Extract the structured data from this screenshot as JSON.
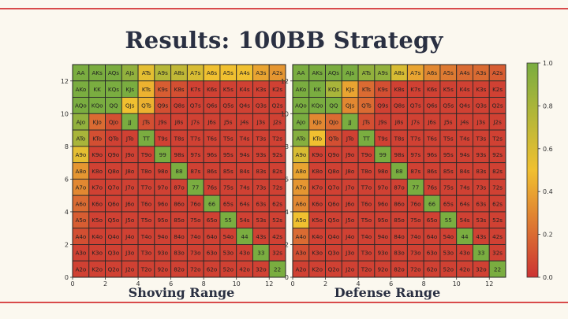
{
  "title": "Results: 100BB Strategy",
  "captions": {
    "left": "Shoving Range",
    "right": "Defense Range"
  },
  "colors": {
    "low": "#cc3333",
    "mid": "#f0c030",
    "high": "#7aad40"
  },
  "chart_data": [
    {
      "type": "heatmap",
      "title": "",
      "ranks": [
        "A",
        "K",
        "Q",
        "J",
        "T",
        "9",
        "8",
        "7",
        "6",
        "5",
        "4",
        "3",
        "2"
      ],
      "x_ticks": [
        0,
        2,
        4,
        6,
        8,
        10,
        12
      ],
      "y_ticks": [
        0,
        2,
        4,
        6,
        8,
        10,
        12
      ],
      "xlim": [
        0,
        13
      ],
      "ylim": [
        0,
        13
      ],
      "cells": [
        [
          1,
          1,
          1,
          0.9,
          0.55,
          0.75,
          0.7,
          0.6,
          0.5,
          0.5,
          0.5,
          0.4,
          0.35
        ],
        [
          1,
          1,
          1,
          1,
          0.45,
          0.15,
          0.1,
          0.05,
          0.05,
          0.05,
          0.05,
          0.05,
          0.05
        ],
        [
          1,
          1,
          1,
          0.5,
          0.45,
          0.1,
          0.05,
          0.05,
          0.05,
          0.05,
          0.05,
          0.05,
          0.05
        ],
        [
          0.9,
          0.2,
          0.1,
          1,
          0.1,
          0.05,
          0.05,
          0.05,
          0.05,
          0.05,
          0.05,
          0.05,
          0.05
        ],
        [
          0.8,
          0.1,
          0.05,
          0.05,
          1,
          0.05,
          0.05,
          0.05,
          0.05,
          0.05,
          0.05,
          0.05,
          0.05
        ],
        [
          0.55,
          0.05,
          0.05,
          0.05,
          0.05,
          1,
          0.05,
          0.05,
          0.05,
          0.05,
          0.05,
          0.05,
          0.05
        ],
        [
          0.35,
          0.05,
          0.05,
          0.05,
          0.05,
          0.05,
          1,
          0.05,
          0.05,
          0.05,
          0.05,
          0.05,
          0.05
        ],
        [
          0.3,
          0.05,
          0.05,
          0.05,
          0.05,
          0.05,
          0.05,
          1,
          0.05,
          0.05,
          0.05,
          0.05,
          0.05
        ],
        [
          0.2,
          0.05,
          0.05,
          0.05,
          0.05,
          0.05,
          0.05,
          0.05,
          1,
          0.05,
          0.05,
          0.05,
          0.05
        ],
        [
          0.15,
          0.05,
          0.05,
          0.05,
          0.05,
          0.05,
          0.05,
          0.05,
          0.05,
          1,
          0.05,
          0.05,
          0.05
        ],
        [
          0.1,
          0.05,
          0.05,
          0.05,
          0.05,
          0.05,
          0.05,
          0.05,
          0.05,
          0.05,
          1,
          0.05,
          0.05
        ],
        [
          0.05,
          0.05,
          0.05,
          0.05,
          0.05,
          0.05,
          0.05,
          0.05,
          0.05,
          0.05,
          0.05,
          1,
          0.05
        ],
        [
          0.05,
          0.05,
          0.05,
          0.05,
          0.05,
          0.05,
          0.05,
          0.05,
          0.05,
          0.05,
          0.05,
          0.05,
          1
        ]
      ]
    },
    {
      "type": "heatmap",
      "title": "",
      "ranks": [
        "A",
        "K",
        "Q",
        "J",
        "T",
        "9",
        "8",
        "7",
        "6",
        "5",
        "4",
        "3",
        "2"
      ],
      "x_ticks": [
        0,
        2,
        4,
        6,
        8,
        10,
        12
      ],
      "y_ticks": [
        0,
        2,
        4,
        6,
        8,
        10,
        12
      ],
      "xlim": [
        0,
        13
      ],
      "ylim": [
        0,
        13
      ],
      "cells": [
        [
          1,
          1,
          1,
          1,
          0.9,
          0.9,
          0.6,
          0.4,
          0.3,
          0.25,
          0.2,
          0.2,
          0.15
        ],
        [
          1,
          1,
          0.8,
          0.4,
          0.2,
          0.1,
          0.05,
          0.05,
          0.05,
          0.05,
          0.05,
          0.05,
          0.05
        ],
        [
          1,
          1,
          1,
          0.3,
          0.2,
          0.05,
          0.05,
          0.05,
          0.05,
          0.05,
          0.05,
          0.05,
          0.05
        ],
        [
          1,
          0.3,
          0.2,
          1,
          0.1,
          0.05,
          0.05,
          0.05,
          0.05,
          0.05,
          0.05,
          0.05,
          0.05
        ],
        [
          0.95,
          0.5,
          0.1,
          0.05,
          1,
          0.05,
          0.05,
          0.05,
          0.05,
          0.05,
          0.05,
          0.05,
          0.05
        ],
        [
          0.6,
          0.05,
          0.05,
          0.05,
          0.05,
          1,
          0.05,
          0.05,
          0.05,
          0.05,
          0.05,
          0.05,
          0.05
        ],
        [
          0.4,
          0.05,
          0.05,
          0.05,
          0.05,
          0.05,
          1,
          0.05,
          0.05,
          0.05,
          0.05,
          0.05,
          0.05
        ],
        [
          0.35,
          0.05,
          0.05,
          0.05,
          0.05,
          0.05,
          0.05,
          1,
          0.05,
          0.05,
          0.05,
          0.05,
          0.05
        ],
        [
          0.3,
          0.05,
          0.05,
          0.05,
          0.05,
          0.05,
          0.05,
          0.05,
          1,
          0.05,
          0.05,
          0.05,
          0.05
        ],
        [
          0.5,
          0.05,
          0.05,
          0.05,
          0.05,
          0.05,
          0.05,
          0.05,
          0.05,
          1,
          0.05,
          0.05,
          0.05
        ],
        [
          0.2,
          0.05,
          0.05,
          0.05,
          0.05,
          0.05,
          0.05,
          0.05,
          0.05,
          0.05,
          1,
          0.05,
          0.05
        ],
        [
          0.1,
          0.05,
          0.05,
          0.05,
          0.05,
          0.05,
          0.05,
          0.05,
          0.05,
          0.05,
          0.05,
          1,
          0.05
        ],
        [
          0.05,
          0.05,
          0.05,
          0.05,
          0.05,
          0.05,
          0.05,
          0.05,
          0.05,
          0.05,
          0.05,
          0.05,
          1
        ]
      ]
    }
  ],
  "colorbar": {
    "ticks": [
      "0.0",
      "0.2",
      "0.4",
      "0.6",
      "0.8",
      "1.0"
    ],
    "range": [
      0,
      1
    ]
  }
}
